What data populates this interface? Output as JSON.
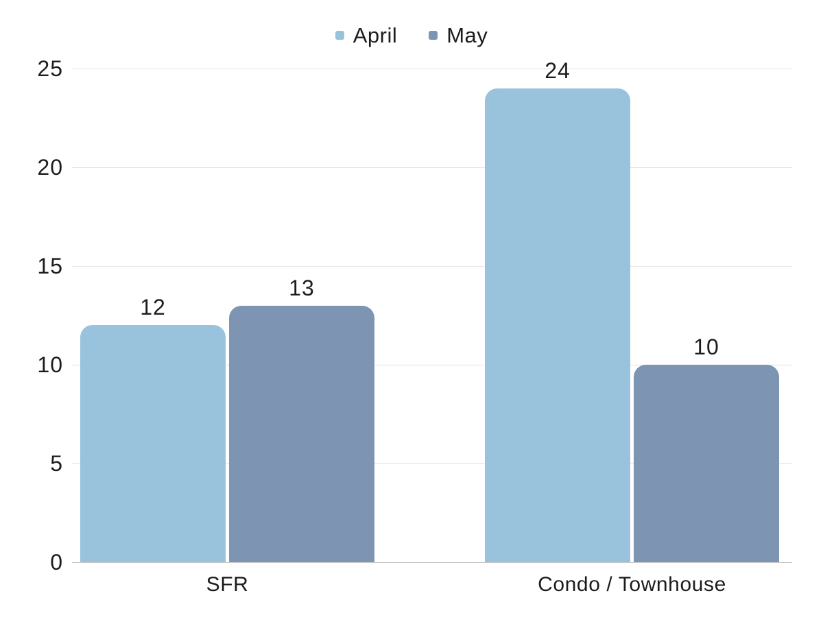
{
  "chart_data": {
    "type": "bar",
    "title": "",
    "categories": [
      "SFR",
      "Condo / Townhouse"
    ],
    "series": [
      {
        "name": "April",
        "color": "#99c3dc",
        "values": [
          12,
          24
        ]
      },
      {
        "name": "May",
        "color": "#7d95b2",
        "values": [
          13,
          10
        ]
      }
    ],
    "value_labels": [
      [
        "12",
        "24"
      ],
      [
        "13",
        "10"
      ]
    ],
    "y_ticks": [
      "0",
      "5",
      "10",
      "15",
      "20",
      "25"
    ],
    "y_tick_values": [
      0,
      5,
      10,
      15,
      20,
      25
    ],
    "ylim": [
      0,
      25
    ],
    "xlabel": "",
    "ylabel": "",
    "grid": true,
    "legend_position": "top",
    "colors": {
      "background": "#ffffff",
      "gridline": "#e3e3e3",
      "axis_line": "#c6c6c6",
      "text": "#1c1c1c"
    }
  }
}
